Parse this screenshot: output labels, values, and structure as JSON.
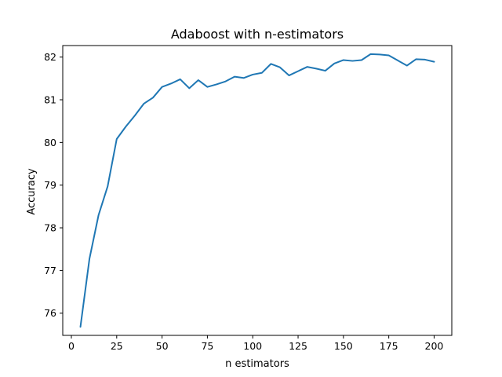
{
  "chart_data": {
    "type": "line",
    "title": "Adaboost with n-estimators",
    "xlabel": "n estimators",
    "ylabel": "Accuracy",
    "xlim": [
      -4.75,
      209.75
    ],
    "ylim": [
      75.48,
      82.27
    ],
    "xticks": [
      0,
      25,
      50,
      75,
      100,
      125,
      150,
      175,
      200
    ],
    "yticks": [
      76,
      77,
      78,
      79,
      80,
      81,
      82
    ],
    "grid": false,
    "legend": "none",
    "series": [
      {
        "color": "#1f77b4",
        "x": [
          5,
          10,
          15,
          20,
          25,
          30,
          35,
          40,
          45,
          50,
          55,
          60,
          65,
          70,
          75,
          80,
          85,
          90,
          95,
          100,
          105,
          110,
          115,
          120,
          125,
          130,
          135,
          140,
          145,
          150,
          155,
          160,
          165,
          170,
          175,
          180,
          185,
          190,
          195,
          200
        ],
        "y": [
          75.68,
          77.28,
          78.3,
          78.97,
          80.08,
          80.37,
          80.63,
          80.91,
          81.05,
          81.3,
          81.38,
          81.48,
          81.27,
          81.46,
          81.3,
          81.36,
          81.43,
          81.54,
          81.51,
          81.59,
          81.63,
          81.84,
          81.76,
          81.57,
          81.67,
          81.77,
          81.73,
          81.68,
          81.85,
          81.93,
          81.91,
          81.93,
          82.07,
          82.06,
          82.04,
          81.92,
          81.8,
          81.95,
          81.94,
          81.89
        ]
      }
    ]
  }
}
